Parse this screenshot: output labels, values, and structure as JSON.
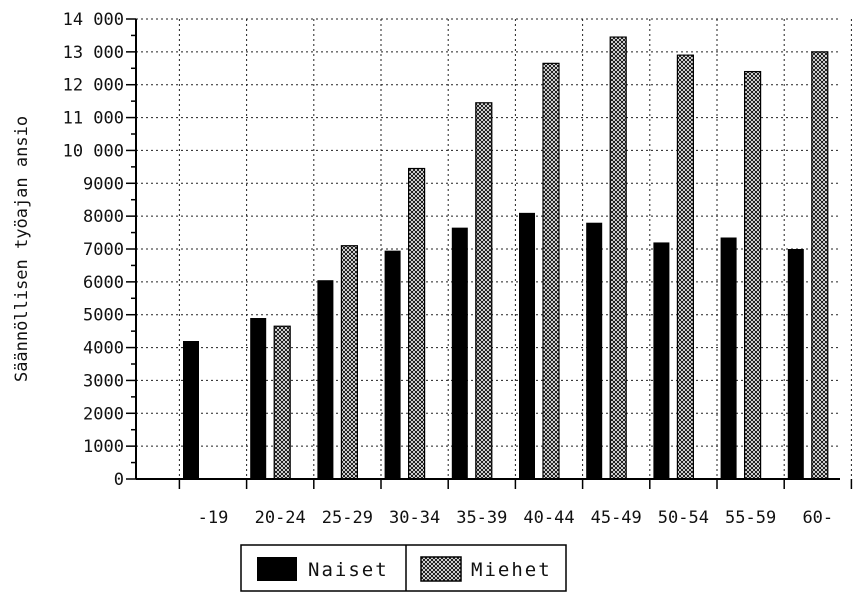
{
  "chart_data": {
    "type": "bar",
    "categories": [
      "-19",
      "20-24",
      "25-29",
      "30-34",
      "35-39",
      "40-44",
      "45-49",
      "50-54",
      "55-59",
      "60-"
    ],
    "series": [
      {
        "name": "Naiset",
        "values": [
          4200,
          4900,
          6050,
          6950,
          7650,
          8100,
          7800,
          7200,
          7350,
          7000
        ],
        "fill": "#000000"
      },
      {
        "name": "Miehet",
        "values": [
          0,
          4650,
          7100,
          9450,
          11450,
          12650,
          13450,
          12900,
          12400,
          13000
        ],
        "fill": "crosshatch"
      }
    ],
    "ylabel": "Säännöllisen työajan ansio",
    "xlabel": "",
    "title": "",
    "ylim": [
      0,
      14000
    ],
    "yticks": [
      0,
      1000,
      2000,
      3000,
      4000,
      5000,
      6000,
      7000,
      8000,
      9000,
      10000,
      11000,
      12000,
      13000,
      14000
    ],
    "ytick_labels": [
      "0",
      "1000",
      "2000",
      "3000",
      "4000",
      "5000",
      "6000",
      "7000",
      "8000",
      "9000",
      "10 000",
      "11 000",
      "12 000",
      "13 000",
      "14 000"
    ],
    "grid": "dotted",
    "legend_position": "bottom-center"
  }
}
